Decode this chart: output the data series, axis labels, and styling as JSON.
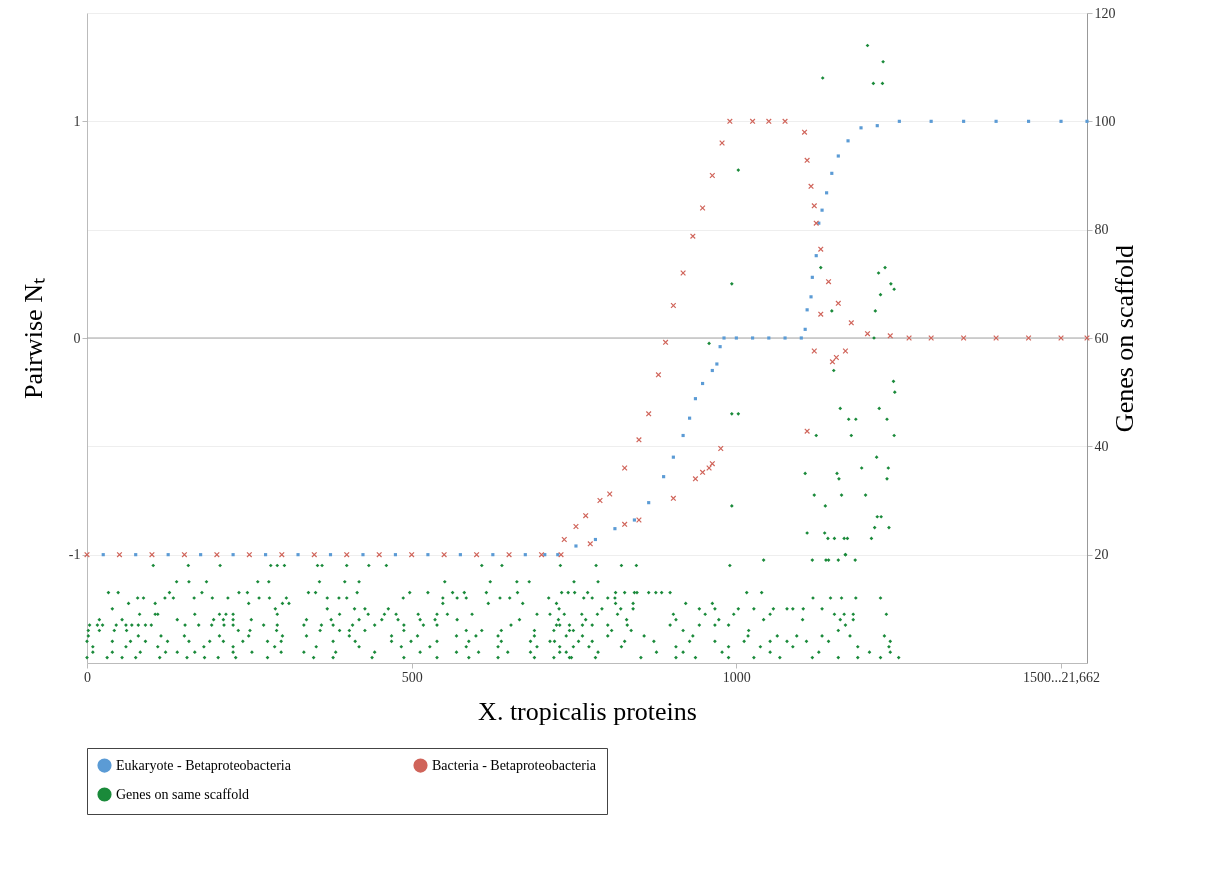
{
  "chart_data": {
    "type": "scatter",
    "xlabel": "X. tropicalis proteins",
    "ylabel": "Pairwise Nₜ",
    "y2label": "Genes on scaffold",
    "xlim": [
      0,
      1540
    ],
    "xticks": [
      0,
      500,
      1000,
      {
        "value": 1500,
        "label": "1500...21,662"
      }
    ],
    "ylim": [
      -1.5,
      1.5
    ],
    "yticks": [
      -1,
      0,
      1
    ],
    "y2lim": [
      0,
      120
    ],
    "y2ticks": [
      20,
      40,
      60,
      80,
      100,
      120
    ],
    "grid": "y",
    "legend": "bottom",
    "ref_lines": [
      {
        "axis": "y",
        "value": 0,
        "color": "#a6a6a6"
      }
    ],
    "series": [
      {
        "name": "Eukaryote - Betaproteobacteria",
        "color": "#5b9bd5",
        "marker": "square",
        "x": [
          25,
          75,
          125,
          175,
          225,
          275,
          325,
          375,
          425,
          475,
          525,
          575,
          625,
          675,
          705,
          725,
          753,
          783,
          813,
          843,
          865,
          888,
          903,
          918,
          928,
          937,
          948,
          963,
          970,
          975,
          981,
          1000,
          1025,
          1050,
          1075,
          1100,
          1106,
          1109,
          1115,
          1117,
          1123,
          1127,
          1132,
          1139,
          1147,
          1157,
          1172,
          1192,
          1217,
          1251,
          1300,
          1350,
          1400,
          1450,
          1500,
          1540
        ],
        "values": [
          -1,
          -1,
          -1,
          -1,
          -1,
          -1,
          -1,
          -1,
          -1,
          -1,
          -1,
          -1,
          -1,
          -1,
          -1,
          -1,
          -0.96,
          -0.93,
          -0.88,
          -0.84,
          -0.76,
          -0.64,
          -0.55,
          -0.45,
          -0.37,
          -0.28,
          -0.21,
          -0.15,
          -0.12,
          -0.04,
          0,
          0,
          0,
          0,
          0,
          0,
          0.04,
          0.13,
          0.19,
          0.28,
          0.38,
          0.53,
          0.59,
          0.67,
          0.76,
          0.84,
          0.91,
          0.97,
          0.98,
          1,
          1,
          1,
          1,
          1,
          1,
          1
        ]
      },
      {
        "name": "Bacteria - Betaproteobacteria",
        "color": "#d0645a",
        "marker": "cross",
        "x": [
          0,
          50,
          100,
          150,
          200,
          250,
          300,
          350,
          400,
          450,
          500,
          550,
          600,
          650,
          700,
          730,
          735,
          753,
          768,
          790,
          805,
          828,
          850,
          865,
          880,
          891,
          903,
          918,
          933,
          948,
          963,
          978,
          990,
          1025,
          1050,
          1075,
          1105,
          1109,
          1115,
          1123,
          1130,
          1142,
          1157,
          1177,
          1202,
          1237,
          1266,
          1300,
          1350,
          1400,
          1450,
          1500,
          1540,
          775,
          828,
          850,
          903,
          937,
          948,
          958,
          963,
          976,
          1109,
          1120,
          1148,
          1154,
          1168,
          1130,
          1120
        ],
        "values": [
          -1,
          -1,
          -1,
          -1,
          -1,
          -1,
          -1,
          -1,
          -1,
          -1,
          -1,
          -1,
          -1,
          -1,
          -1,
          -1,
          -0.93,
          -0.87,
          -0.82,
          -0.75,
          -0.72,
          -0.6,
          -0.47,
          -0.35,
          -0.17,
          -0.02,
          0.15,
          0.3,
          0.47,
          0.6,
          0.75,
          0.9,
          1,
          1,
          1,
          1,
          0.95,
          0.82,
          0.7,
          0.53,
          0.41,
          0.26,
          0.16,
          0.07,
          0.02,
          0.01,
          0,
          0,
          0,
          0,
          0,
          0,
          0,
          -0.95,
          -0.86,
          -0.84,
          -0.74,
          -0.65,
          -0.62,
          -0.6,
          -0.58,
          -0.51,
          -0.43,
          -0.06,
          -0.11,
          -0.09,
          -0.06,
          0.11,
          0.61
        ]
      },
      {
        "name": "Genes on same scaffold",
        "color": "#1a8a3a",
        "marker": "diamond",
        "axis": "y2",
        "x": [
          102,
          156,
          205,
          283,
          293,
          304,
          355,
          362,
          400,
          434,
          461,
          608,
          639,
          729,
          784,
          823,
          846,
          990,
          1042,
          1117,
          1138,
          1142,
          1157,
          1183,
          1168,
          138,
          157,
          184,
          263,
          280,
          358,
          397,
          419,
          551,
          621,
          662,
          681,
          750,
          787,
          33,
          48,
          127,
          177,
          234,
          247,
          341,
          352,
          416,
          497,
          525,
          563,
          581,
          615,
          663,
          731,
          741,
          751,
          771,
          814,
          828,
          843,
          847,
          865,
          876,
          885,
          898,
          1016,
          1039,
          78,
          87,
          120,
          133,
          165,
          193,
          217,
          265,
          281,
          307,
          370,
          388,
          400,
          487,
          548,
          570,
          584,
          636,
          651,
          711,
          765,
          778,
          802,
          813,
          1118,
          1145,
          1162,
          1184,
          1222,
          64,
          105,
          249,
          301,
          311,
          548,
          618,
          671,
          723,
          814,
          841,
          922,
          963,
          39,
          290,
          370,
          412,
          428,
          464,
          727,
          793,
          822,
          841,
          943,
          967,
          1003,
          1027,
          1057,
          1078,
          1087,
          1103,
          1132,
          81,
          105,
          109,
          166,
          204,
          214,
          225,
          293,
          389,
          433,
          458,
          476,
          510,
          539,
          555,
          593,
          693,
          713,
          735,
          762,
          786,
          817,
          903,
          952,
          996,
          1052,
          1151,
          1166,
          1180,
          1231,
          19,
          54,
          139,
          195,
          210,
          225,
          253,
          338,
          376,
          419,
          454,
          479,
          513,
          536,
          570,
          666,
          726,
          768,
          831,
          907,
          973,
          1042,
          1102,
          1160,
          1180,
          4,
          16,
          24,
          45,
          60,
          69,
          79,
          90,
          99,
          151,
          172,
          192,
          211,
          225,
          272,
          293,
          334,
          361,
          379,
          409,
          443,
          488,
          518,
          539,
          653,
          728,
          763,
          723,
          743,
          778,
          802,
          832,
          898,
          943,
          967,
          988,
          1168,
          2,
          19,
          42,
          61,
          233,
          251,
          292,
          359,
          389,
          404,
          428,
          488,
          584,
          608,
          638,
          689,
          749,
          719,
          743,
          808,
          838,
          918,
          1019,
          1157,
          2,
          79,
          114,
          150,
          204,
          249,
          301,
          338,
          404,
          469,
          509,
          569,
          599,
          633,
          689,
          738,
          763,
          802,
          858,
          933,
          1018,
          1063,
          1093,
          1132,
          1175,
          1228,
          0,
          39,
          67,
          90,
          124,
          157,
          189,
          210,
          240,
          278,
          299,
          379,
          413,
          469,
          499,
          539,
          588,
          638,
          683,
          713,
          757,
          720,
          778,
          828,
          873,
          928,
          967,
          1012,
          1052,
          1078,
          1108,
          1142,
          1237,
          9,
          60,
          109,
          180,
          225,
          289,
          353,
          419,
          484,
          528,
          584,
          633,
          693,
          749,
          728,
          773,
          823,
          907,
          988,
          1037,
          1087,
          1187,
          1235,
          9,
          39,
          82,
          121,
          139,
          166,
          225,
          254,
          299,
          334,
          383,
          443,
          513,
          569,
          603,
          648,
          683,
          728,
          738,
          787,
          877,
          918,
          978,
          1052,
          1127,
          1205,
          1237,
          0,
          31,
          54,
          75,
          112,
          154,
          181,
          202,
          229,
          278,
          349,
          379,
          439,
          488,
          539,
          588,
          633,
          689,
          743,
          719,
          746,
          783,
          853,
          907,
          937,
          988,
          1027,
          1067,
          1117,
          1157,
          1187,
          1222,
          1250,
          958,
          993,
          1003,
          1150,
          1242,
          1244,
          1160,
          1220,
          1173,
          1184,
          1232,
          1123,
          1177,
          1243,
          1216,
          1193,
          1234,
          1106,
          1155,
          1158,
          1232,
          993,
          1120,
          1162,
          1199,
          1137,
          1217,
          1223,
          1213,
          1235,
          1109,
          1136,
          1141,
          1151,
          1166,
          1171,
          1208,
          1168,
          1202,
          1226,
          1133,
          1211,
          1225,
          1130,
          1219,
          1229,
          1238,
          1243,
          1222,
          1147,
          1214,
          1212,
          1003,
          993
        ],
        "values": [
          18,
          18,
          18,
          18,
          18,
          18,
          18,
          18,
          18,
          18,
          18,
          18,
          18,
          18,
          18,
          18,
          18,
          18,
          19,
          19,
          19,
          19,
          19,
          19,
          20,
          15,
          15,
          15,
          15,
          15,
          15,
          15,
          15,
          15,
          15,
          15,
          15,
          15,
          15,
          13,
          13,
          13,
          13,
          13,
          13,
          13,
          13,
          13,
          13,
          13,
          13,
          13,
          13,
          13,
          13,
          13,
          13,
          13,
          13,
          13,
          13,
          13,
          13,
          13,
          13,
          13,
          13,
          13,
          12,
          12,
          12,
          12,
          12,
          12,
          12,
          12,
          12,
          12,
          12,
          12,
          12,
          12,
          12,
          12,
          12,
          12,
          12,
          12,
          12,
          12,
          12,
          12,
          12,
          12,
          12,
          12,
          12,
          11,
          11,
          11,
          11,
          11,
          11,
          11,
          11,
          11,
          11,
          11,
          11,
          11,
          10,
          10,
          10,
          10,
          10,
          10,
          10,
          10,
          10,
          10,
          10,
          10,
          10,
          10,
          10,
          10,
          10,
          10,
          10,
          9,
          9,
          9,
          9,
          9,
          9,
          9,
          9,
          9,
          9,
          9,
          9,
          9,
          9,
          9,
          9,
          9,
          9,
          9,
          9,
          9,
          9,
          9,
          9,
          9,
          9,
          9,
          9,
          9,
          9,
          8,
          8,
          8,
          8,
          8,
          8,
          8,
          8,
          8,
          8,
          8,
          8,
          8,
          8,
          8,
          8,
          8,
          8,
          8,
          8,
          8,
          8,
          8,
          8,
          8,
          7,
          7,
          7,
          7,
          7,
          7,
          7,
          7,
          7,
          7,
          7,
          7,
          7,
          7,
          7,
          7,
          7,
          7,
          7,
          7,
          7,
          7,
          7,
          7,
          7,
          7,
          7,
          7,
          7,
          7,
          7,
          7,
          7,
          7,
          7,
          7,
          7,
          6,
          6,
          6,
          6,
          6,
          6,
          6,
          6,
          6,
          6,
          6,
          6,
          6,
          6,
          6,
          6,
          6,
          6,
          6,
          6,
          6,
          6,
          6,
          6,
          5,
          5,
          5,
          5,
          5,
          5,
          5,
          5,
          5,
          5,
          5,
          5,
          5,
          5,
          5,
          5,
          5,
          5,
          5,
          5,
          5,
          5,
          5,
          5,
          5,
          5,
          4,
          4,
          4,
          4,
          4,
          4,
          4,
          4,
          4,
          4,
          4,
          4,
          4,
          4,
          4,
          4,
          4,
          4,
          4,
          4,
          4,
          4,
          4,
          4,
          4,
          4,
          4,
          4,
          4,
          4,
          4,
          4,
          4,
          3,
          3,
          3,
          3,
          3,
          3,
          3,
          3,
          3,
          3,
          3,
          3,
          3,
          3,
          3,
          3,
          3,
          3,
          3,
          3,
          3,
          3,
          3,
          2,
          2,
          2,
          2,
          2,
          2,
          2,
          2,
          2,
          2,
          2,
          2,
          2,
          2,
          2,
          2,
          2,
          2,
          2,
          2,
          2,
          2,
          2,
          2,
          2,
          2,
          2,
          1,
          1,
          1,
          1,
          1,
          1,
          1,
          1,
          1,
          1,
          1,
          1,
          1,
          1,
          1,
          1,
          1,
          1,
          1,
          1,
          1,
          1,
          1,
          1,
          1,
          1,
          1,
          1,
          1,
          1,
          1,
          1,
          1,
          59,
          46,
          46,
          54,
          52,
          50,
          47,
          47,
          45,
          45,
          45,
          42,
          42,
          42,
          38,
          36,
          36,
          35,
          35,
          34,
          34,
          29,
          31,
          31,
          31,
          29,
          27,
          27,
          25,
          25,
          24,
          24,
          23,
          23,
          23,
          23,
          23,
          20,
          114,
          111,
          108,
          107,
          107,
          73,
          72,
          73,
          70,
          69,
          68,
          65,
          65,
          60,
          91,
          70
        ]
      }
    ]
  }
}
